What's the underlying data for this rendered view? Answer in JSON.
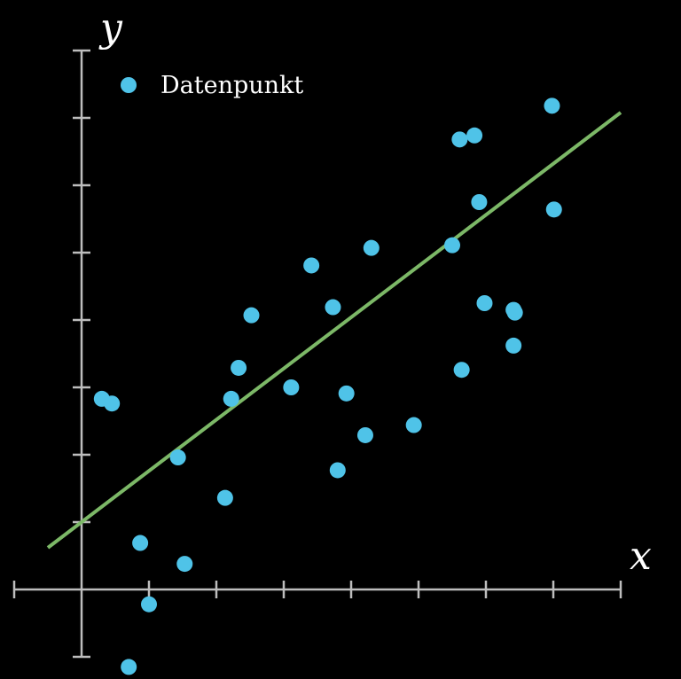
{
  "chart_data": {
    "type": "scatter",
    "xlabel": "x",
    "ylabel": "y",
    "xlim": [
      -1,
      8
    ],
    "ylim": [
      -1,
      8
    ],
    "x_ticks": [
      -1,
      1,
      2,
      3,
      4,
      5,
      6,
      7,
      8
    ],
    "y_ticks": [
      -1,
      1,
      2,
      3,
      4,
      5,
      6,
      7,
      8
    ],
    "grid": false,
    "legend_position": "top-left",
    "colors": {
      "points": "#4fc3e8",
      "fit": "#7cb867",
      "axes": "#bdbdbd",
      "background": "#000000"
    },
    "series": [
      {
        "name": "Datenpunkt",
        "points": [
          [
            0.3,
            2.83
          ],
          [
            0.45,
            2.76
          ],
          [
            0.7,
            -1.15
          ],
          [
            0.87,
            0.69
          ],
          [
            1.0,
            -0.22
          ],
          [
            1.43,
            1.96
          ],
          [
            1.53,
            0.38
          ],
          [
            2.13,
            1.36
          ],
          [
            2.22,
            2.83
          ],
          [
            2.33,
            3.29
          ],
          [
            2.52,
            4.07
          ],
          [
            3.11,
            3.0
          ],
          [
            3.41,
            4.81
          ],
          [
            3.73,
            4.19
          ],
          [
            3.8,
            1.77
          ],
          [
            3.93,
            2.91
          ],
          [
            4.21,
            2.29
          ],
          [
            4.3,
            5.07
          ],
          [
            4.93,
            2.44
          ],
          [
            5.5,
            5.11
          ],
          [
            5.61,
            6.68
          ],
          [
            5.64,
            3.26
          ],
          [
            5.83,
            6.74
          ],
          [
            5.9,
            5.75
          ],
          [
            5.98,
            4.25
          ],
          [
            6.41,
            4.15
          ],
          [
            6.43,
            4.11
          ],
          [
            6.41,
            3.62
          ],
          [
            6.98,
            7.18
          ],
          [
            7.01,
            5.64
          ]
        ]
      }
    ],
    "fit_line": {
      "slope": 0.76,
      "intercept": 1.0,
      "x_range": [
        -0.5,
        8
      ]
    }
  }
}
